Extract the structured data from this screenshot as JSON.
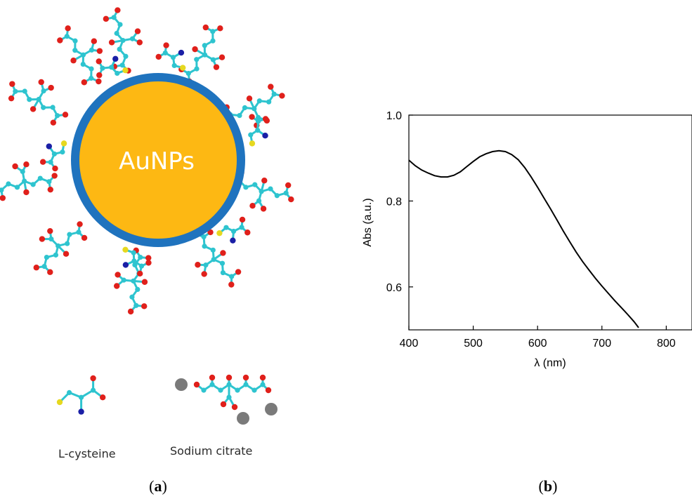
{
  "figure_a": {
    "core_label": "AuNPs",
    "legend": [
      {
        "label": "L-cysteine"
      },
      {
        "label": "Sodium citrate"
      }
    ],
    "panel_label": "a"
  },
  "figure_b": {
    "panel_label": "b"
  },
  "colors": {
    "core": "#fdb813",
    "shell": "#1f73be",
    "carbon": "#2ec4cf",
    "oxygen": "#e0201b",
    "sulfur": "#e6d81f",
    "nitrogen": "#1a1fa6",
    "sodium": "#7a7a7a",
    "line": "#000000"
  },
  "chart_data": {
    "type": "line",
    "title": "",
    "xlabel": "λ (nm)",
    "ylabel": "Abs (a.u.)",
    "xlim": [
      400,
      840
    ],
    "ylim": [
      0.5,
      1.0
    ],
    "xticks": [
      400,
      500,
      600,
      700,
      800
    ],
    "yticks": [
      0.6,
      0.8,
      1.0
    ],
    "ytick_labels": [
      "0.6",
      "0.8",
      "1.0"
    ],
    "grid": false,
    "series": [
      {
        "x": [
          400,
          410,
          420,
          430,
          440,
          450,
          460,
          470,
          480,
          490,
          500,
          510,
          520,
          530,
          540,
          550,
          560,
          570,
          580,
          590,
          600,
          610,
          620,
          630,
          640,
          650,
          660,
          670,
          680,
          690,
          700,
          710,
          720,
          730,
          740,
          750,
          757
        ],
        "y": [
          0.895,
          0.882,
          0.872,
          0.865,
          0.859,
          0.856,
          0.856,
          0.86,
          0.868,
          0.88,
          0.892,
          0.903,
          0.91,
          0.915,
          0.917,
          0.915,
          0.908,
          0.896,
          0.878,
          0.856,
          0.832,
          0.807,
          0.782,
          0.756,
          0.73,
          0.705,
          0.681,
          0.659,
          0.639,
          0.62,
          0.602,
          0.585,
          0.568,
          0.552,
          0.536,
          0.519,
          0.505
        ]
      }
    ]
  }
}
